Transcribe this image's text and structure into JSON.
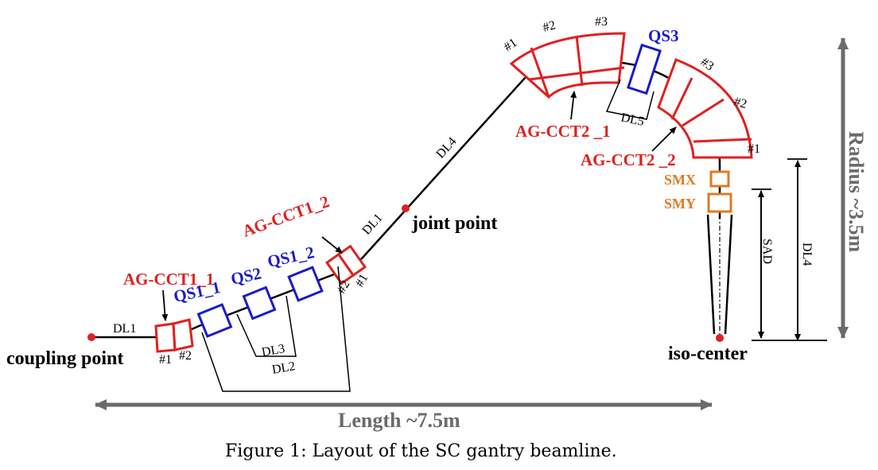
{
  "colors": {
    "beam": "#000000",
    "dipole": "#e02020",
    "quad": "#1a1acc",
    "steering": "#e07a20",
    "arrow_gray": "#6b6b6b",
    "dimension_gray": "#6b6b6b"
  },
  "labels": {
    "coupling_point": "coupling point",
    "joint_point": "joint point",
    "iso_center": "iso-center",
    "ag_cct1_1": "AG-CCT1_1",
    "ag_cct1_2": "AG-CCT1_2",
    "ag_cct2_1": "AG-CCT2 _1",
    "ag_cct2_2": "AG-CCT2 _2",
    "qs1_1": "QS1_1",
    "qs2": "QS2",
    "qs1_2": "QS1_2",
    "qs3": "QS3",
    "smx": "SMX",
    "smy": "SMY",
    "dl1_left": "DL1",
    "dl1_joint": "DL1",
    "dl2": "DL2",
    "dl3": "DL3",
    "dl4_diag": "DL4",
    "dl4_right": "DL4",
    "dl5": "DL5",
    "sad": "SAD",
    "length": "Length ~7.5m",
    "radius": "Radius ~3.5m",
    "cct1_1_n1": "#1",
    "cct1_1_n2": "#2",
    "cct1_2_n1": "#1",
    "cct1_2_n2": "#2",
    "cct2_1_n1": "#1",
    "cct2_1_n2": "#2",
    "cct2_1_n3": "#3",
    "cct2_2_n1": "#1",
    "cct2_2_n2": "#2",
    "cct2_2_n3": "#3"
  },
  "caption": "Figure 1: Layout of the SC gantry beamline."
}
